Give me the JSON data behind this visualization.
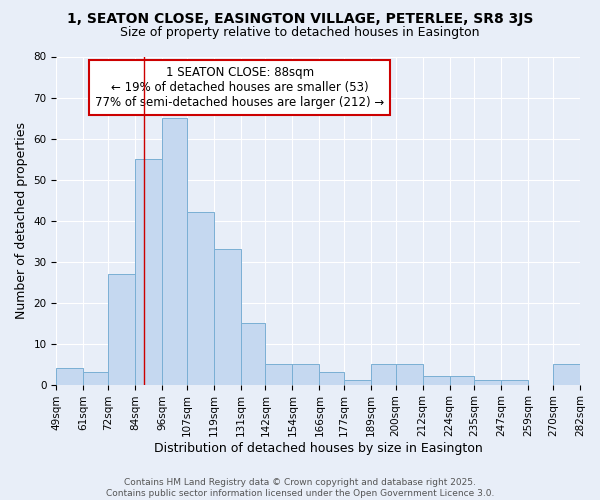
{
  "title1": "1, SEATON CLOSE, EASINGTON VILLAGE, PETERLEE, SR8 3JS",
  "title2": "Size of property relative to detached houses in Easington",
  "xlabel": "Distribution of detached houses by size in Easington",
  "ylabel": "Number of detached properties",
  "bin_edges": [
    49,
    61,
    72,
    84,
    96,
    107,
    119,
    131,
    142,
    154,
    166,
    177,
    189,
    200,
    212,
    224,
    235,
    247,
    259,
    270,
    282
  ],
  "bar_heights": [
    4,
    3,
    27,
    55,
    65,
    42,
    33,
    15,
    5,
    5,
    3,
    1,
    5,
    5,
    2,
    2,
    1,
    1,
    0,
    5
  ],
  "bar_color": "#c5d8f0",
  "bar_edge_color": "#7aafd4",
  "bg_color": "#e8eef8",
  "grid_color": "#ffffff",
  "property_line_x": 88,
  "property_line_color": "#cc0000",
  "annotation_line1": "1 SEATON CLOSE: 88sqm",
  "annotation_line2": "← 19% of detached houses are smaller (53)",
  "annotation_line3": "77% of semi-detached houses are larger (212) →",
  "annotation_box_color": "#ffffff",
  "annotation_box_edge": "#cc0000",
  "ylim": [
    0,
    80
  ],
  "yticks": [
    0,
    10,
    20,
    30,
    40,
    50,
    60,
    70,
    80
  ],
  "footer_line1": "Contains HM Land Registry data © Crown copyright and database right 2025.",
  "footer_line2": "Contains public sector information licensed under the Open Government Licence 3.0.",
  "title_fontsize": 10,
  "subtitle_fontsize": 9,
  "tick_fontsize": 7.5,
  "label_fontsize": 9,
  "annotation_fontsize": 8.5,
  "footer_fontsize": 6.5
}
